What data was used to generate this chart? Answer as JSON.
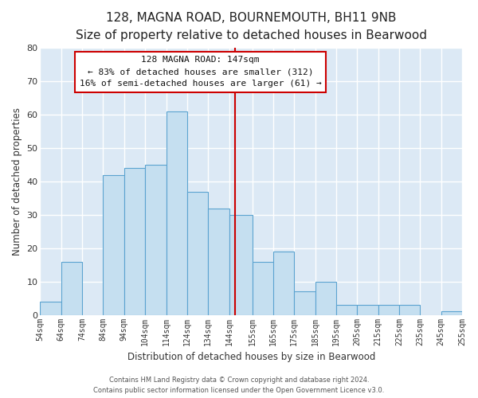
{
  "title": "128, MAGNA ROAD, BOURNEMOUTH, BH11 9NB",
  "subtitle": "Size of property relative to detached houses in Bearwood",
  "xlabel": "Distribution of detached houses by size in Bearwood",
  "ylabel": "Number of detached properties",
  "bar_left_edges": [
    54,
    64,
    74,
    84,
    94,
    104,
    114,
    124,
    134,
    144,
    155,
    165,
    175,
    185,
    195,
    205,
    215,
    225,
    235,
    245
  ],
  "bar_heights": [
    4,
    16,
    0,
    42,
    44,
    45,
    61,
    37,
    32,
    30,
    16,
    19,
    7,
    10,
    3,
    3,
    3,
    3,
    0,
    1
  ],
  "bar_widths": [
    10,
    10,
    10,
    10,
    10,
    10,
    10,
    10,
    10,
    11,
    11,
    10,
    10,
    10,
    10,
    10,
    10,
    10,
    10,
    10
  ],
  "bar_color": "#c5dff0",
  "bar_edge_color": "#5ba3d0",
  "reference_line_x": 147,
  "reference_line_color": "#cc0000",
  "annotation_text_line1": "128 MAGNA ROAD: 147sqm",
  "annotation_text_line2": "← 83% of detached houses are smaller (312)",
  "annotation_text_line3": "16% of semi-detached houses are larger (61) →",
  "ylim": [
    0,
    80
  ],
  "xlim": [
    54,
    255
  ],
  "tick_labels": [
    "54sqm",
    "64sqm",
    "74sqm",
    "84sqm",
    "94sqm",
    "104sqm",
    "114sqm",
    "124sqm",
    "134sqm",
    "144sqm",
    "155sqm",
    "165sqm",
    "175sqm",
    "185sqm",
    "195sqm",
    "205sqm",
    "215sqm",
    "225sqm",
    "235sqm",
    "245sqm",
    "255sqm"
  ],
  "tick_positions": [
    54,
    64,
    74,
    84,
    94,
    104,
    114,
    124,
    134,
    144,
    155,
    165,
    175,
    185,
    195,
    205,
    215,
    225,
    235,
    245,
    255
  ],
  "footer_line1": "Contains HM Land Registry data © Crown copyright and database right 2024.",
  "footer_line2": "Contains public sector information licensed under the Open Government Licence v3.0.",
  "plot_bg_color": "#dce9f5",
  "fig_bg_color": "#ffffff",
  "grid_color": "#ffffff",
  "title_fontsize": 11,
  "subtitle_fontsize": 9,
  "axis_label_fontsize": 8.5,
  "tick_fontsize": 7,
  "footer_fontsize": 6,
  "annotation_fontsize": 8
}
